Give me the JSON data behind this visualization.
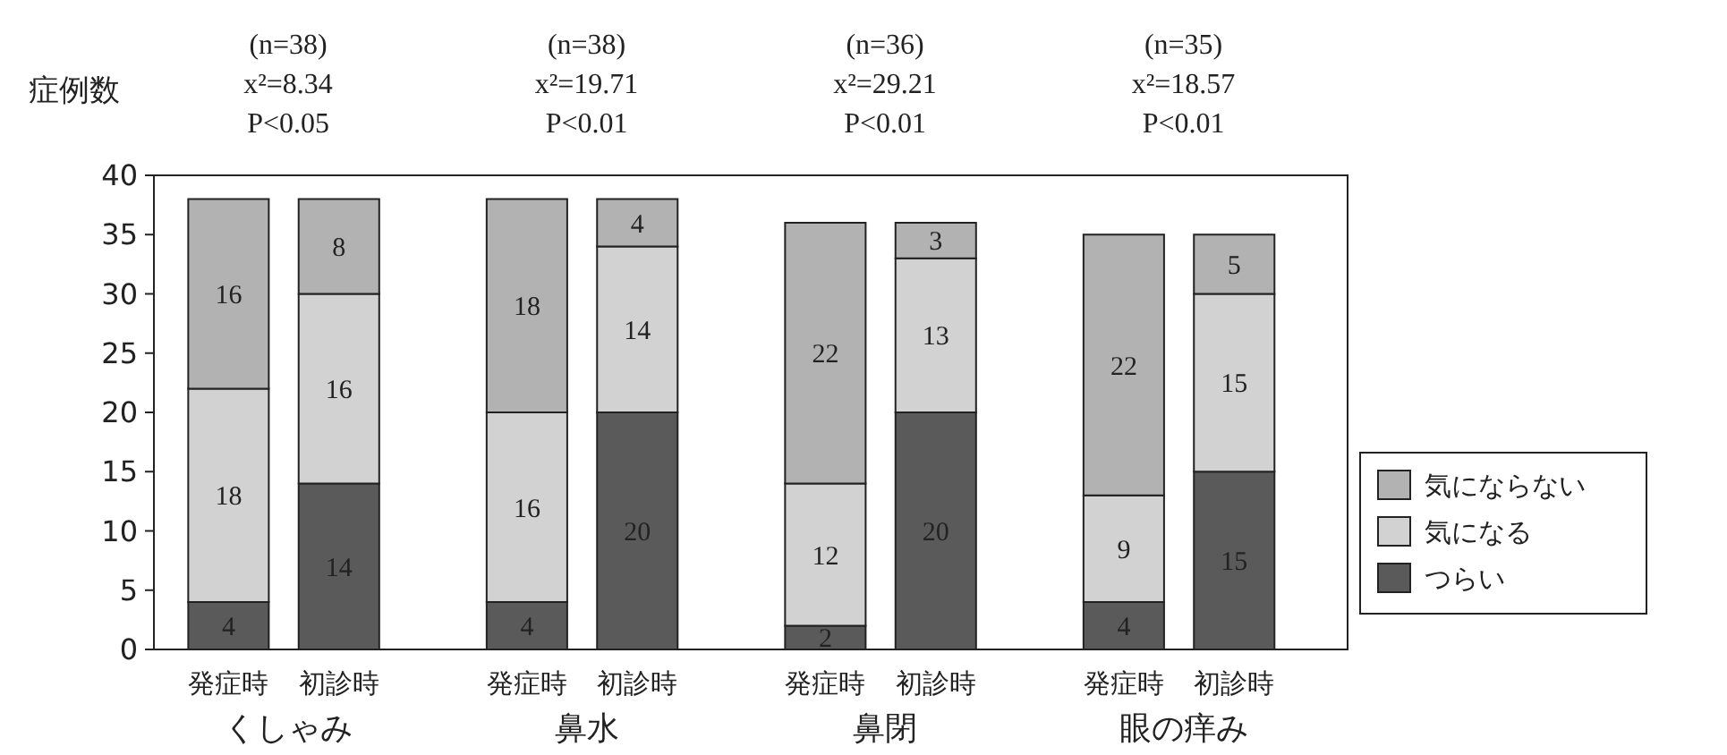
{
  "chart_data": {
    "type": "bar",
    "stacked": true,
    "ylabel": "症例数",
    "categories": [
      "発症時",
      "初診時",
      "発症時",
      "初診時",
      "発症時",
      "初診時",
      "発症時",
      "初診時"
    ],
    "series": [
      {
        "name": "つらい",
        "color": "#5a5a5a",
        "values": [
          4,
          14,
          4,
          20,
          2,
          20,
          4,
          15
        ]
      },
      {
        "name": "気になる",
        "color": "#d2d2d2",
        "values": [
          18,
          16,
          16,
          14,
          12,
          13,
          9,
          15
        ]
      },
      {
        "name": "気にならない",
        "color": "#b2b2b2",
        "values": [
          16,
          8,
          18,
          4,
          22,
          3,
          22,
          5
        ]
      }
    ],
    "ylim": [
      0,
      40
    ],
    "yticks": [
      0,
      5,
      10,
      15,
      20,
      25,
      30,
      35,
      40
    ],
    "data_labels": true,
    "legend": "right",
    "grid": false,
    "annotations": [
      "(n=38)",
      "x²=8.34",
      "P<0.05",
      "(n=38)",
      "x²=19.71",
      "P<0.01",
      "(n=36)",
      "x²=29.21",
      "P<0.01",
      "(n=35)",
      "x²=18.57",
      "P<0.01",
      "くしゃみ",
      "鼻水",
      "鼻閉",
      "眼の痒み"
    ]
  }
}
